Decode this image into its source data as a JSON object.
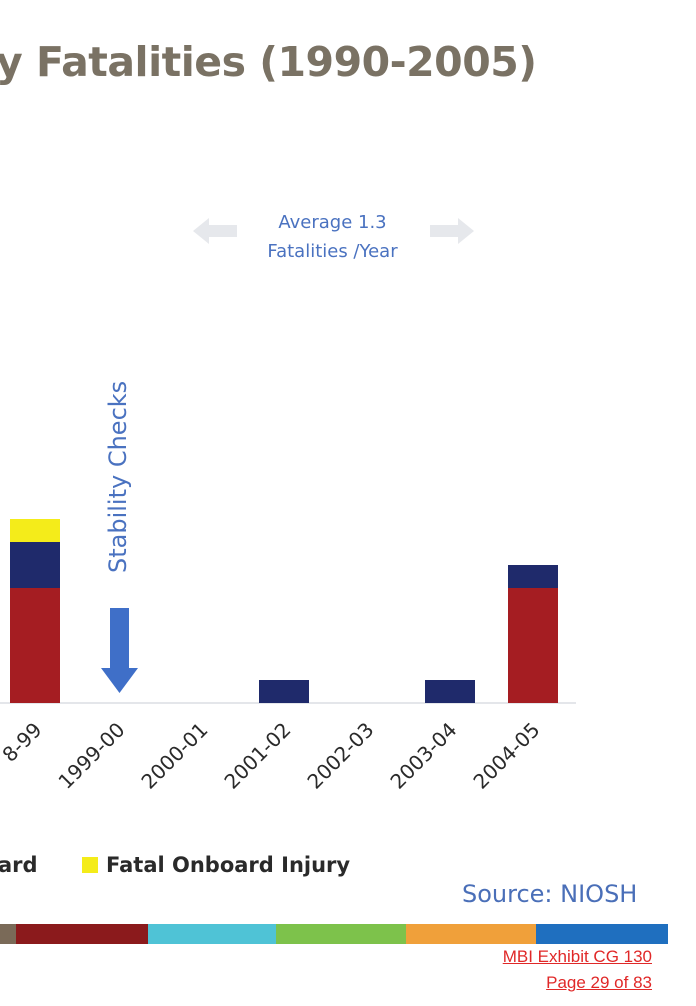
{
  "title": "y Fatalities (1990-2005)",
  "annotation": {
    "average_line1": "Average 1.3",
    "average_line2": "Fatalities /Year",
    "stability": "Stability  Checks"
  },
  "legend": [
    {
      "label": "ard",
      "color": "#a51d22"
    },
    {
      "label": "Fatal Onboard Injury",
      "color": "#f4ec1a"
    }
  ],
  "source": "Source: NIOSH",
  "exhibit": {
    "line1": "MBI Exhibit CG 130",
    "line2": "Page 29 of 83"
  },
  "stripe_colors": [
    "#7a6a58",
    "#8b1a1c",
    "#4fc3d6",
    "#7dc24b",
    "#f0a03a",
    "#1f6fbf"
  ],
  "chart_data": {
    "type": "bar",
    "stacked": true,
    "categories": [
      "8-99",
      "1999-00",
      "2000-01",
      "2001-02",
      "2002-03",
      "2003-04",
      "2004-05"
    ],
    "series": [
      {
        "color": "#a51d22",
        "values": [
          5,
          0,
          0,
          0,
          0,
          0,
          5
        ]
      },
      {
        "color": "#1f2a6b",
        "values": [
          2,
          0,
          0,
          1,
          0,
          1,
          1
        ]
      },
      {
        "name": "Fatal Onboard Injury",
        "color": "#f4ec1a",
        "values": [
          1,
          0,
          0,
          0,
          0,
          0,
          0
        ]
      }
    ],
    "grid": false
  }
}
